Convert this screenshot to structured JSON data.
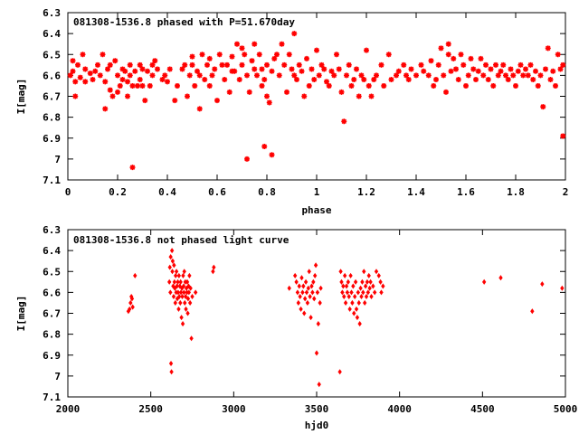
{
  "chart_data": [
    {
      "type": "scatter",
      "title": "081308-1536.8 phased with P=51.670day",
      "xlabel": "phase",
      "ylabel": "I[mag]",
      "xlim": [
        0,
        2
      ],
      "ylim": [
        6.3,
        7.1
      ],
      "y_inverted": true,
      "xticks": [
        "0",
        "0.2",
        "0.4",
        "0.6",
        "0.8",
        "1",
        "1.2",
        "1.4",
        "1.6",
        "1.8",
        "2"
      ],
      "yticks": [
        "6.3",
        "6.4",
        "6.5",
        "6.6",
        "6.7",
        "6.8",
        "6.9",
        "7",
        "7.1"
      ],
      "marker_color": "#ff0000",
      "points": [
        [
          0.01,
          6.6
        ],
        [
          0.02,
          6.58
        ],
        [
          0.03,
          6.63
        ],
        [
          0.03,
          6.7
        ],
        [
          0.02,
          6.53
        ],
        [
          0.04,
          6.55
        ],
        [
          0.05,
          6.61
        ],
        [
          0.06,
          6.5
        ],
        [
          0.07,
          6.57
        ],
        [
          0.07,
          6.63
        ],
        [
          0.09,
          6.59
        ],
        [
          0.1,
          6.62
        ],
        [
          0.11,
          6.58
        ],
        [
          0.12,
          6.55
        ],
        [
          0.13,
          6.6
        ],
        [
          0.14,
          6.5
        ],
        [
          0.15,
          6.63
        ],
        [
          0.15,
          6.76
        ],
        [
          0.16,
          6.57
        ],
        [
          0.17,
          6.67
        ],
        [
          0.17,
          6.55
        ],
        [
          0.18,
          6.7
        ],
        [
          0.19,
          6.53
        ],
        [
          0.2,
          6.6
        ],
        [
          0.2,
          6.68
        ],
        [
          0.21,
          6.65
        ],
        [
          0.22,
          6.62
        ],
        [
          0.22,
          6.57
        ],
        [
          0.23,
          6.58
        ],
        [
          0.24,
          6.63
        ],
        [
          0.24,
          6.7
        ],
        [
          0.25,
          6.6
        ],
        [
          0.25,
          6.55
        ],
        [
          0.26,
          6.65
        ],
        [
          0.26,
          7.04
        ],
        [
          0.27,
          6.58
        ],
        [
          0.28,
          6.65
        ],
        [
          0.29,
          6.55
        ],
        [
          0.29,
          6.62
        ],
        [
          0.3,
          6.57
        ],
        [
          0.3,
          6.65
        ],
        [
          0.31,
          6.72
        ],
        [
          0.32,
          6.58
        ],
        [
          0.33,
          6.65
        ],
        [
          0.34,
          6.6
        ],
        [
          0.34,
          6.55
        ],
        [
          0.35,
          6.53
        ],
        [
          0.36,
          6.57
        ],
        [
          0.38,
          6.62
        ],
        [
          0.39,
          6.6
        ],
        [
          0.4,
          6.63
        ],
        [
          0.41,
          6.57
        ],
        [
          0.43,
          6.72
        ],
        [
          0.44,
          6.65
        ],
        [
          0.46,
          6.57
        ],
        [
          0.47,
          6.55
        ],
        [
          0.48,
          6.7
        ],
        [
          0.49,
          6.6
        ],
        [
          0.5,
          6.51
        ],
        [
          0.5,
          6.55
        ],
        [
          0.51,
          6.65
        ],
        [
          0.52,
          6.58
        ],
        [
          0.53,
          6.6
        ],
        [
          0.53,
          6.76
        ],
        [
          0.54,
          6.5
        ],
        [
          0.55,
          6.62
        ],
        [
          0.56,
          6.55
        ],
        [
          0.57,
          6.65
        ],
        [
          0.57,
          6.52
        ],
        [
          0.58,
          6.6
        ],
        [
          0.59,
          6.57
        ],
        [
          0.6,
          6.72
        ],
        [
          0.61,
          6.5
        ],
        [
          0.62,
          6.55
        ],
        [
          0.63,
          6.62
        ],
        [
          0.64,
          6.55
        ],
        [
          0.65,
          6.68
        ],
        [
          0.66,
          6.58
        ],
        [
          0.66,
          6.51
        ],
        [
          0.67,
          6.58
        ],
        [
          0.68,
          6.45
        ],
        [
          0.69,
          6.62
        ],
        [
          0.7,
          6.55
        ],
        [
          0.7,
          6.47
        ],
        [
          0.71,
          6.5
        ],
        [
          0.72,
          6.6
        ],
        [
          0.72,
          7.0
        ],
        [
          0.73,
          6.68
        ],
        [
          0.74,
          6.53
        ],
        [
          0.75,
          6.45
        ],
        [
          0.75,
          6.57
        ],
        [
          0.76,
          6.6
        ],
        [
          0.77,
          6.5
        ],
        [
          0.78,
          6.57
        ],
        [
          0.78,
          6.65
        ],
        [
          0.79,
          6.62
        ],
        [
          0.79,
          6.94
        ],
        [
          0.8,
          6.7
        ],
        [
          0.8,
          6.55
        ],
        [
          0.81,
          6.73
        ],
        [
          0.82,
          6.58
        ],
        [
          0.82,
          6.98
        ],
        [
          0.83,
          6.52
        ],
        [
          0.84,
          6.5
        ],
        [
          0.85,
          6.6
        ],
        [
          0.86,
          6.45
        ],
        [
          0.87,
          6.55
        ],
        [
          0.88,
          6.68
        ],
        [
          0.89,
          6.5
        ],
        [
          0.9,
          6.57
        ],
        [
          0.91,
          6.6
        ],
        [
          0.91,
          6.4
        ],
        [
          0.92,
          6.62
        ],
        [
          0.93,
          6.55
        ],
        [
          0.94,
          6.58
        ],
        [
          0.95,
          6.7
        ],
        [
          0.96,
          6.52
        ],
        [
          0.97,
          6.65
        ],
        [
          0.98,
          6.57
        ],
        [
          0.99,
          6.62
        ],
        [
          1.0,
          6.48
        ],
        [
          1.01,
          6.6
        ],
        [
          1.02,
          6.55
        ],
        [
          1.03,
          6.57
        ],
        [
          1.04,
          6.63
        ],
        [
          1.05,
          6.65
        ],
        [
          1.06,
          6.58
        ],
        [
          1.07,
          6.6
        ],
        [
          1.08,
          6.5
        ],
        [
          1.09,
          6.57
        ],
        [
          1.1,
          6.68
        ],
        [
          1.11,
          6.82
        ],
        [
          1.12,
          6.6
        ],
        [
          1.13,
          6.55
        ],
        [
          1.14,
          6.65
        ],
        [
          1.15,
          6.62
        ],
        [
          1.16,
          6.57
        ],
        [
          1.17,
          6.7
        ],
        [
          1.18,
          6.6
        ],
        [
          1.19,
          6.62
        ],
        [
          1.2,
          6.48
        ],
        [
          1.21,
          6.65
        ],
        [
          1.22,
          6.7
        ],
        [
          1.23,
          6.62
        ],
        [
          1.24,
          6.6
        ],
        [
          1.26,
          6.55
        ],
        [
          1.27,
          6.65
        ],
        [
          1.29,
          6.5
        ],
        [
          1.3,
          6.62
        ],
        [
          1.32,
          6.6
        ],
        [
          1.33,
          6.58
        ],
        [
          1.35,
          6.55
        ],
        [
          1.36,
          6.6
        ],
        [
          1.37,
          6.62
        ],
        [
          1.38,
          6.57
        ],
        [
          1.4,
          6.6
        ],
        [
          1.42,
          6.55
        ],
        [
          1.43,
          6.58
        ],
        [
          1.45,
          6.6
        ],
        [
          1.46,
          6.53
        ],
        [
          1.47,
          6.65
        ],
        [
          1.48,
          6.62
        ],
        [
          1.49,
          6.55
        ],
        [
          1.5,
          6.47
        ],
        [
          1.51,
          6.6
        ],
        [
          1.52,
          6.68
        ],
        [
          1.53,
          6.5
        ],
        [
          1.53,
          6.45
        ],
        [
          1.54,
          6.58
        ],
        [
          1.55,
          6.52
        ],
        [
          1.56,
          6.57
        ],
        [
          1.57,
          6.62
        ],
        [
          1.58,
          6.5
        ],
        [
          1.59,
          6.55
        ],
        [
          1.6,
          6.65
        ],
        [
          1.61,
          6.6
        ],
        [
          1.62,
          6.52
        ],
        [
          1.63,
          6.57
        ],
        [
          1.64,
          6.62
        ],
        [
          1.65,
          6.58
        ],
        [
          1.66,
          6.52
        ],
        [
          1.67,
          6.6
        ],
        [
          1.68,
          6.55
        ],
        [
          1.69,
          6.62
        ],
        [
          1.7,
          6.57
        ],
        [
          1.71,
          6.65
        ],
        [
          1.72,
          6.55
        ],
        [
          1.73,
          6.6
        ],
        [
          1.74,
          6.58
        ],
        [
          1.75,
          6.55
        ],
        [
          1.76,
          6.6
        ],
        [
          1.77,
          6.62
        ],
        [
          1.78,
          6.57
        ],
        [
          1.79,
          6.6
        ],
        [
          1.8,
          6.65
        ],
        [
          1.81,
          6.58
        ],
        [
          1.82,
          6.55
        ],
        [
          1.83,
          6.6
        ],
        [
          1.84,
          6.57
        ],
        [
          1.85,
          6.6
        ],
        [
          1.86,
          6.55
        ],
        [
          1.87,
          6.62
        ],
        [
          1.88,
          6.58
        ],
        [
          1.89,
          6.65
        ],
        [
          1.9,
          6.6
        ],
        [
          1.91,
          6.75
        ],
        [
          1.92,
          6.57
        ],
        [
          1.93,
          6.47
        ],
        [
          1.94,
          6.62
        ],
        [
          1.95,
          6.58
        ],
        [
          1.96,
          6.65
        ],
        [
          1.97,
          6.5
        ],
        [
          1.98,
          6.57
        ],
        [
          1.99,
          6.55
        ],
        [
          1.99,
          6.89
        ]
      ]
    },
    {
      "type": "scatter",
      "title": "081308-1536.8 not phased light curve",
      "xlabel": "hjd0",
      "ylabel": "I[mag]",
      "xlim": [
        2000,
        5000
      ],
      "ylim": [
        6.3,
        7.1
      ],
      "y_inverted": true,
      "xticks": [
        "2000",
        "2500",
        "3000",
        "3500",
        "4000",
        "4500",
        "5000"
      ],
      "yticks": [
        "6.3",
        "6.4",
        "6.5",
        "6.6",
        "6.7",
        "6.8",
        "6.9",
        "7",
        "7.1"
      ],
      "marker_color": "#ff0000",
      "points": [
        [
          2365,
          6.69
        ],
        [
          2372,
          6.68
        ],
        [
          2378,
          6.65
        ],
        [
          2383,
          6.62
        ],
        [
          2387,
          6.63
        ],
        [
          2391,
          6.67
        ],
        [
          2405,
          6.52
        ],
        [
          2612,
          6.55
        ],
        [
          2615,
          6.48
        ],
        [
          2618,
          6.6
        ],
        [
          2620,
          6.43
        ],
        [
          2622,
          6.94
        ],
        [
          2625,
          6.98
        ],
        [
          2628,
          6.4
        ],
        [
          2630,
          6.5
        ],
        [
          2632,
          6.45
        ],
        [
          2635,
          6.57
        ],
        [
          2638,
          6.62
        ],
        [
          2640,
          6.47
        ],
        [
          2643,
          6.55
        ],
        [
          2645,
          6.58
        ],
        [
          2648,
          6.65
        ],
        [
          2650,
          6.52
        ],
        [
          2653,
          6.6
        ],
        [
          2655,
          6.5
        ],
        [
          2658,
          6.57
        ],
        [
          2660,
          6.63
        ],
        [
          2663,
          6.55
        ],
        [
          2665,
          6.6
        ],
        [
          2668,
          6.68
        ],
        [
          2670,
          6.52
        ],
        [
          2672,
          6.62
        ],
        [
          2675,
          6.57
        ],
        [
          2678,
          6.65
        ],
        [
          2680,
          6.55
        ],
        [
          2682,
          6.6
        ],
        [
          2685,
          6.72
        ],
        [
          2688,
          6.58
        ],
        [
          2690,
          6.62
        ],
        [
          2693,
          6.75
        ],
        [
          2695,
          6.52
        ],
        [
          2698,
          6.57
        ],
        [
          2700,
          6.6
        ],
        [
          2702,
          6.5
        ],
        [
          2705,
          6.65
        ],
        [
          2708,
          6.55
        ],
        [
          2710,
          6.62
        ],
        [
          2712,
          6.68
        ],
        [
          2715,
          6.58
        ],
        [
          2718,
          6.6
        ],
        [
          2720,
          6.55
        ],
        [
          2723,
          6.7
        ],
        [
          2725,
          6.63
        ],
        [
          2728,
          6.57
        ],
        [
          2730,
          6.6
        ],
        [
          2733,
          6.52
        ],
        [
          2737,
          6.65
        ],
        [
          2740,
          6.58
        ],
        [
          2745,
          6.82
        ],
        [
          2750,
          6.62
        ],
        [
          2770,
          6.6
        ],
        [
          2875,
          6.5
        ],
        [
          2880,
          6.48
        ],
        [
          3335,
          6.58
        ],
        [
          3370,
          6.52
        ],
        [
          3378,
          6.55
        ],
        [
          3385,
          6.6
        ],
        [
          3390,
          6.65
        ],
        [
          3395,
          6.57
        ],
        [
          3400,
          6.62
        ],
        [
          3405,
          6.68
        ],
        [
          3410,
          6.53
        ],
        [
          3415,
          6.6
        ],
        [
          3420,
          6.57
        ],
        [
          3425,
          6.7
        ],
        [
          3430,
          6.63
        ],
        [
          3435,
          6.55
        ],
        [
          3440,
          6.6
        ],
        [
          3445,
          6.65
        ],
        [
          3450,
          6.58
        ],
        [
          3455,
          6.5
        ],
        [
          3460,
          6.62
        ],
        [
          3465,
          6.72
        ],
        [
          3470,
          6.57
        ],
        [
          3475,
          6.6
        ],
        [
          3480,
          6.55
        ],
        [
          3485,
          6.63
        ],
        [
          3490,
          6.52
        ],
        [
          3495,
          6.47
        ],
        [
          3500,
          6.89
        ],
        [
          3505,
          6.6
        ],
        [
          3510,
          6.75
        ],
        [
          3515,
          7.04
        ],
        [
          3520,
          6.65
        ],
        [
          3525,
          6.58
        ],
        [
          3640,
          6.98
        ],
        [
          3645,
          6.5
        ],
        [
          3650,
          6.55
        ],
        [
          3655,
          6.6
        ],
        [
          3660,
          6.57
        ],
        [
          3665,
          6.62
        ],
        [
          3670,
          6.52
        ],
        [
          3675,
          6.65
        ],
        [
          3680,
          6.57
        ],
        [
          3685,
          6.6
        ],
        [
          3690,
          6.55
        ],
        [
          3695,
          6.62
        ],
        [
          3700,
          6.68
        ],
        [
          3705,
          6.52
        ],
        [
          3710,
          6.6
        ],
        [
          3715,
          6.65
        ],
        [
          3720,
          6.57
        ],
        [
          3725,
          6.7
        ],
        [
          3730,
          6.62
        ],
        [
          3735,
          6.55
        ],
        [
          3740,
          6.68
        ],
        [
          3745,
          6.72
        ],
        [
          3750,
          6.6
        ],
        [
          3755,
          6.65
        ],
        [
          3760,
          6.75
        ],
        [
          3765,
          6.58
        ],
        [
          3770,
          6.62
        ],
        [
          3775,
          6.55
        ],
        [
          3780,
          6.6
        ],
        [
          3785,
          6.5
        ],
        [
          3790,
          6.65
        ],
        [
          3795,
          6.57
        ],
        [
          3800,
          6.62
        ],
        [
          3805,
          6.55
        ],
        [
          3810,
          6.6
        ],
        [
          3815,
          6.52
        ],
        [
          3820,
          6.58
        ],
        [
          3825,
          6.55
        ],
        [
          3830,
          6.62
        ],
        [
          3840,
          6.57
        ],
        [
          3850,
          6.6
        ],
        [
          3860,
          6.5
        ],
        [
          3875,
          6.52
        ],
        [
          3885,
          6.55
        ],
        [
          3890,
          6.6
        ],
        [
          3900,
          6.57
        ],
        [
          4510,
          6.55
        ],
        [
          4610,
          6.53
        ],
        [
          4800,
          6.69
        ],
        [
          4860,
          6.56
        ],
        [
          4980,
          6.58
        ]
      ]
    }
  ]
}
